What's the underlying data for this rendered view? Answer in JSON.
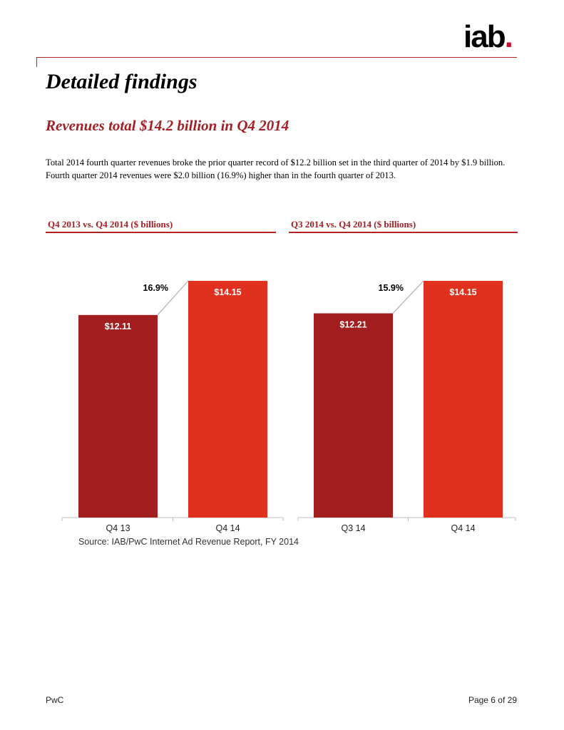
{
  "header": {
    "logo_text": "iab",
    "logo_dot": "."
  },
  "page_title": "Detailed findings",
  "section_title": "Revenues total $14.2 billion in Q4 2014",
  "body_text": "Total 2014 fourth quarter revenues broke the prior quarter record of $12.2 billion set in the third quarter of 2014 by $1.9 billion.  Fourth quarter 2014 revenues were $2.0 billion (16.9%) higher than in the fourth quarter of 2013.",
  "source_note": "Source: IAB/PwC Internet Ad Revenue Report, FY 2014",
  "footer": {
    "left": "PwC",
    "right": "Page 6 of 29"
  },
  "colors": {
    "dark_red": "#a31f1f",
    "bright_red": "#e0301e",
    "accent": "#a31f24"
  },
  "chart_data": [
    {
      "type": "bar",
      "title": "Q4 2013 vs. Q4 2014 ($ billions)",
      "categories": [
        "Q4 13",
        "Q4 14"
      ],
      "values": [
        12.11,
        14.15
      ],
      "value_labels": [
        "$12.11",
        "$14.15"
      ],
      "growth_label": "16.9%",
      "ylim": [
        0,
        14.15
      ],
      "grid": false,
      "legend": "none"
    },
    {
      "type": "bar",
      "title": "Q3 2014 vs. Q4 2014 ($ billions)",
      "categories": [
        "Q3 14",
        "Q4 14"
      ],
      "values": [
        12.21,
        14.15
      ],
      "value_labels": [
        "$12.21",
        "$14.15"
      ],
      "growth_label": "15.9%",
      "ylim": [
        0,
        14.15
      ],
      "grid": false,
      "legend": "none"
    }
  ]
}
